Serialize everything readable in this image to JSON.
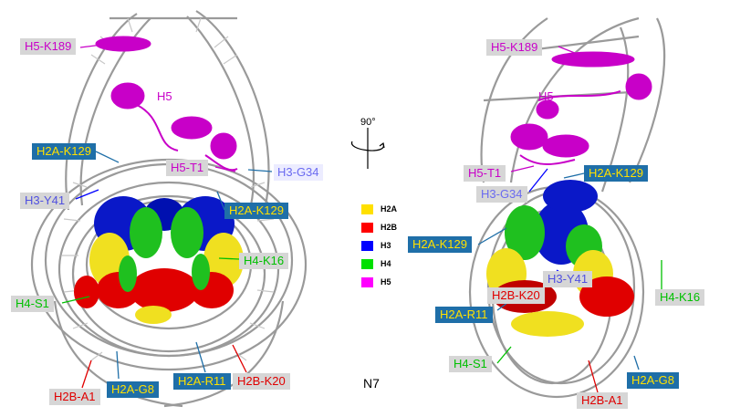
{
  "figure": {
    "rotation": "90°",
    "caption": "N7",
    "legend": [
      {
        "label": "H2A",
        "color": "#ffe000"
      },
      {
        "label": "H2B",
        "color": "#ff0000"
      },
      {
        "label": "H3",
        "color": "#0000ff"
      },
      {
        "label": "H4",
        "color": "#00e000"
      },
      {
        "label": "H5",
        "color": "#ff00ff"
      }
    ]
  },
  "left_view": {
    "labels": {
      "h5_k189": "H5-K189",
      "h5": "H5",
      "h2a_k129_top": "H2A-K129",
      "h5_t1": "H5-T1",
      "h3_g34": "H3-G34",
      "h3_y41": "H3-Y41",
      "h2a_k129_right": "H2A-K129",
      "h4_k16": "H4-K16",
      "h4_s1": "H4-S1",
      "h2b_a1": "H2B-A1",
      "h2a_g8": "H2A-G8",
      "h2a_r11": "H2A-R11",
      "h2b_k20": "H2B-K20"
    }
  },
  "right_view": {
    "labels": {
      "h5_k189": "H5-K189",
      "h5": "H5",
      "h5_t1": "H5-T1",
      "h2a_k129_top": "H2A-K129",
      "h3_g34": "H3-G34",
      "h2a_k129_left": "H2A-K129",
      "h3_y41": "H3-Y41",
      "h2b_k20": "H2B-K20",
      "h2a_r11": "H2A-R11",
      "h4_k16": "H4-K16",
      "h4_s1": "H4-S1",
      "h2a_g8": "H2A-G8",
      "h2b_a1": "H2B-A1"
    }
  }
}
